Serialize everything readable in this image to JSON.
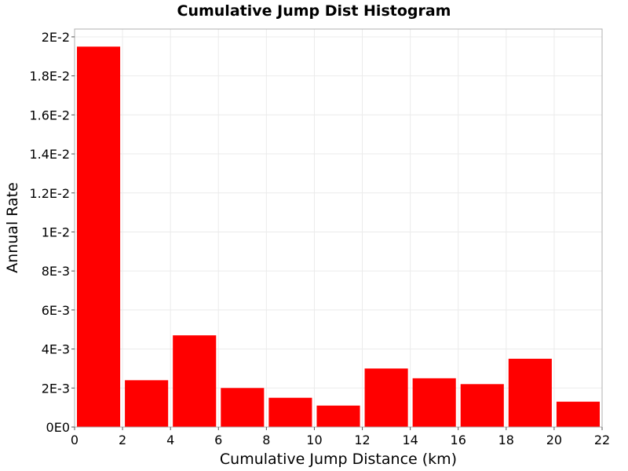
{
  "chart_data": {
    "type": "bar",
    "title": "Cumulative Jump Dist Histogram",
    "xlabel": "Cumulative Jump Distance (km)",
    "ylabel": "Annual Rate",
    "bin_width": 2,
    "x": [
      1,
      3,
      5,
      7,
      9,
      11,
      13,
      15,
      17,
      19,
      21
    ],
    "values": [
      0.0195,
      0.0024,
      0.0047,
      0.002,
      0.0015,
      0.0011,
      0.003,
      0.0025,
      0.0022,
      0.0035,
      0.0013
    ],
    "xlim": [
      0,
      22
    ],
    "ylim": [
      0,
      0.0204
    ],
    "x_ticks": [
      0,
      2,
      4,
      6,
      8,
      10,
      12,
      14,
      16,
      18,
      20,
      22
    ],
    "x_tick_labels": [
      "0",
      "2",
      "4",
      "6",
      "8",
      "10",
      "12",
      "14",
      "16",
      "18",
      "20",
      "22"
    ],
    "y_ticks": [
      0,
      0.002,
      0.004,
      0.006,
      0.008,
      0.01,
      0.012,
      0.014,
      0.016,
      0.018,
      0.02
    ],
    "y_tick_labels": [
      "0E0",
      "2E-3",
      "4E-3",
      "6E-3",
      "8E-3",
      "1E-2",
      "1.2E-2",
      "1.4E-2",
      "1.6E-2",
      "1.8E-2",
      "2E-2"
    ],
    "bar_color": "#ff0000",
    "grid": true,
    "grid_color": "#ebebeb",
    "frame_color": "#b0b0b0"
  }
}
